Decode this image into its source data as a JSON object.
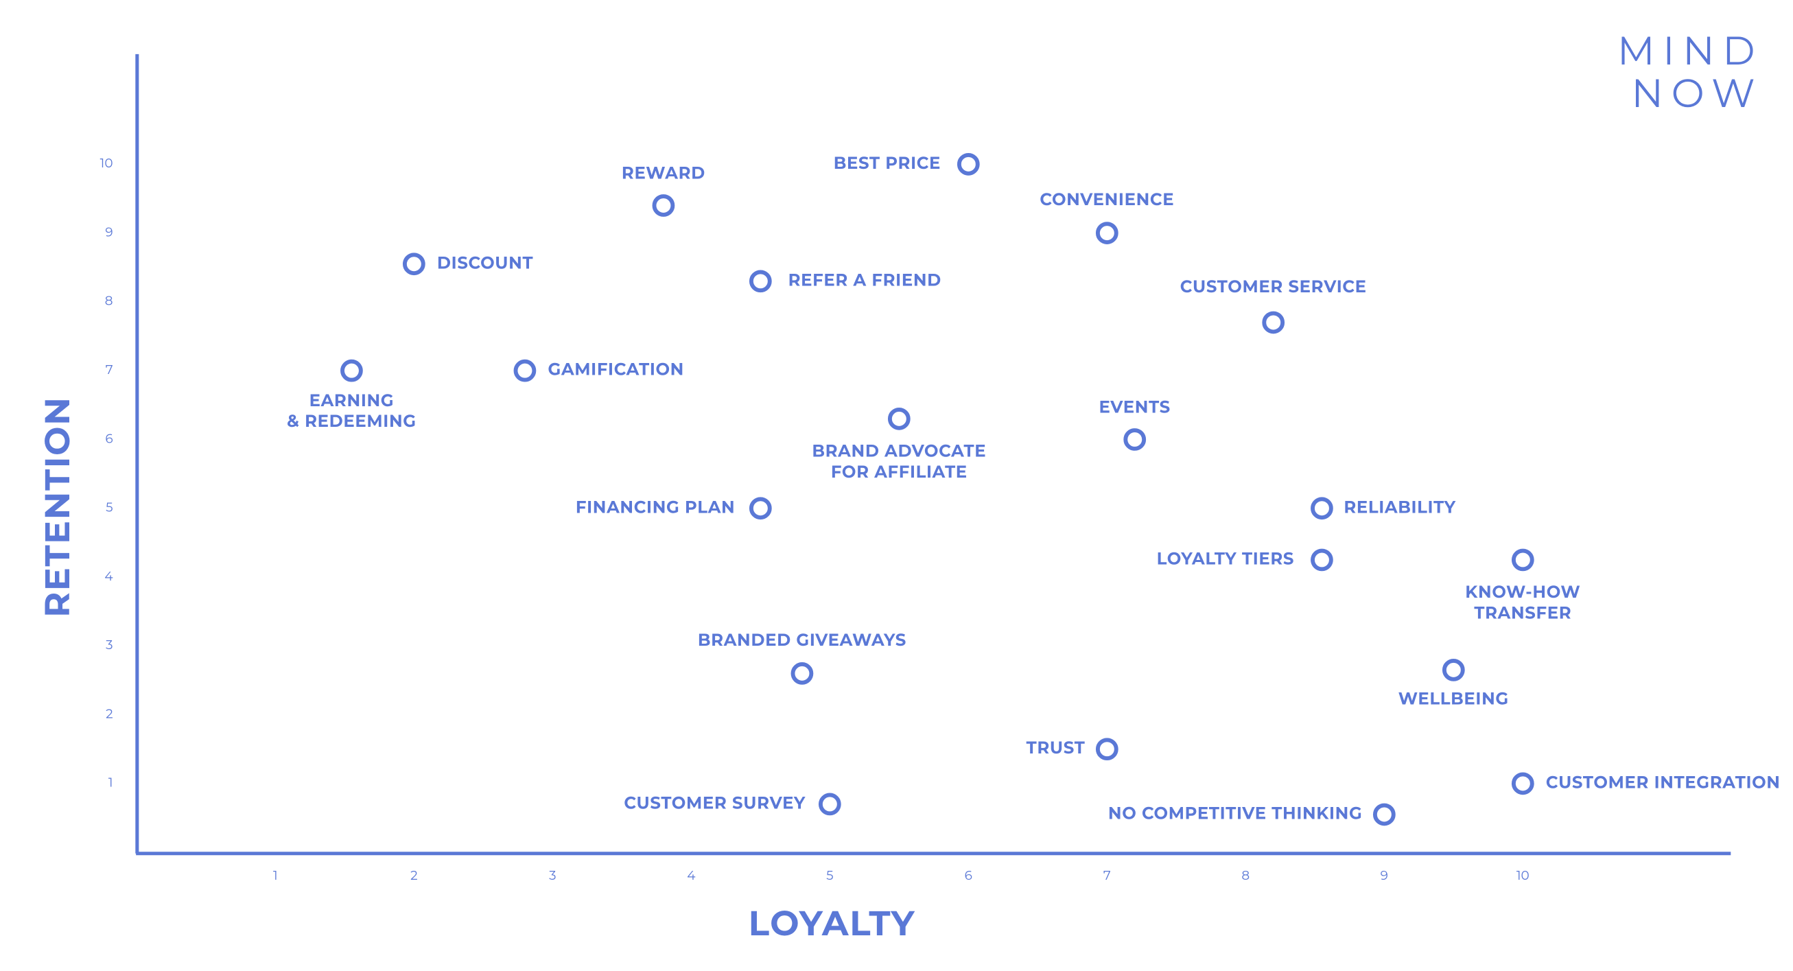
{
  "chart_data": {
    "type": "scatter",
    "logo": [
      "MIND",
      "NOW"
    ],
    "xlabel": "LOYALTY",
    "ylabel": "RETENTION",
    "color": "#5a78d6",
    "xlim": [
      0,
      11.5
    ],
    "ylim": [
      0,
      11.6
    ],
    "xticks": [
      1,
      2,
      3,
      4,
      5,
      6,
      7,
      8,
      9,
      10
    ],
    "yticks": [
      1,
      2,
      3,
      4,
      5,
      6,
      7,
      8,
      9,
      10
    ],
    "labels": [
      "BEST PRICE",
      "REWARD",
      "DISCOUNT",
      "REFER A FRIEND",
      "CONVENIENCE",
      "CUSTOMER SERVICE",
      [
        "EARNING",
        "& REDEEMING"
      ],
      "GAMIFICATION",
      [
        "BRAND ADVOCATE",
        "FOR AFFILIATE"
      ],
      "EVENTS",
      "FINANCING PLAN",
      "RELIABILITY",
      "LOYALTY TIERS",
      [
        "KNOW-HOW",
        "TRANSFER"
      ],
      "BRANDED GIVEAWAYS",
      "WELLBEING",
      "TRUST",
      "CUSTOMER INTEGRATION",
      "CUSTOMER SURVEY",
      "NO COMPETITIVE THINKING"
    ],
    "x": [
      6,
      3.8,
      2,
      4.5,
      7,
      8.2,
      1.55,
      2.8,
      5.5,
      7.2,
      4.5,
      8.55,
      8.55,
      10,
      4.8,
      9.5,
      7,
      10,
      5,
      9
    ],
    "values": [
      10,
      9.4,
      8.55,
      8.3,
      9,
      7.7,
      7,
      7,
      6.3,
      6,
      5,
      5,
      4.25,
      4.25,
      2.6,
      2.65,
      1.5,
      1,
      0.7,
      0.55
    ]
  }
}
